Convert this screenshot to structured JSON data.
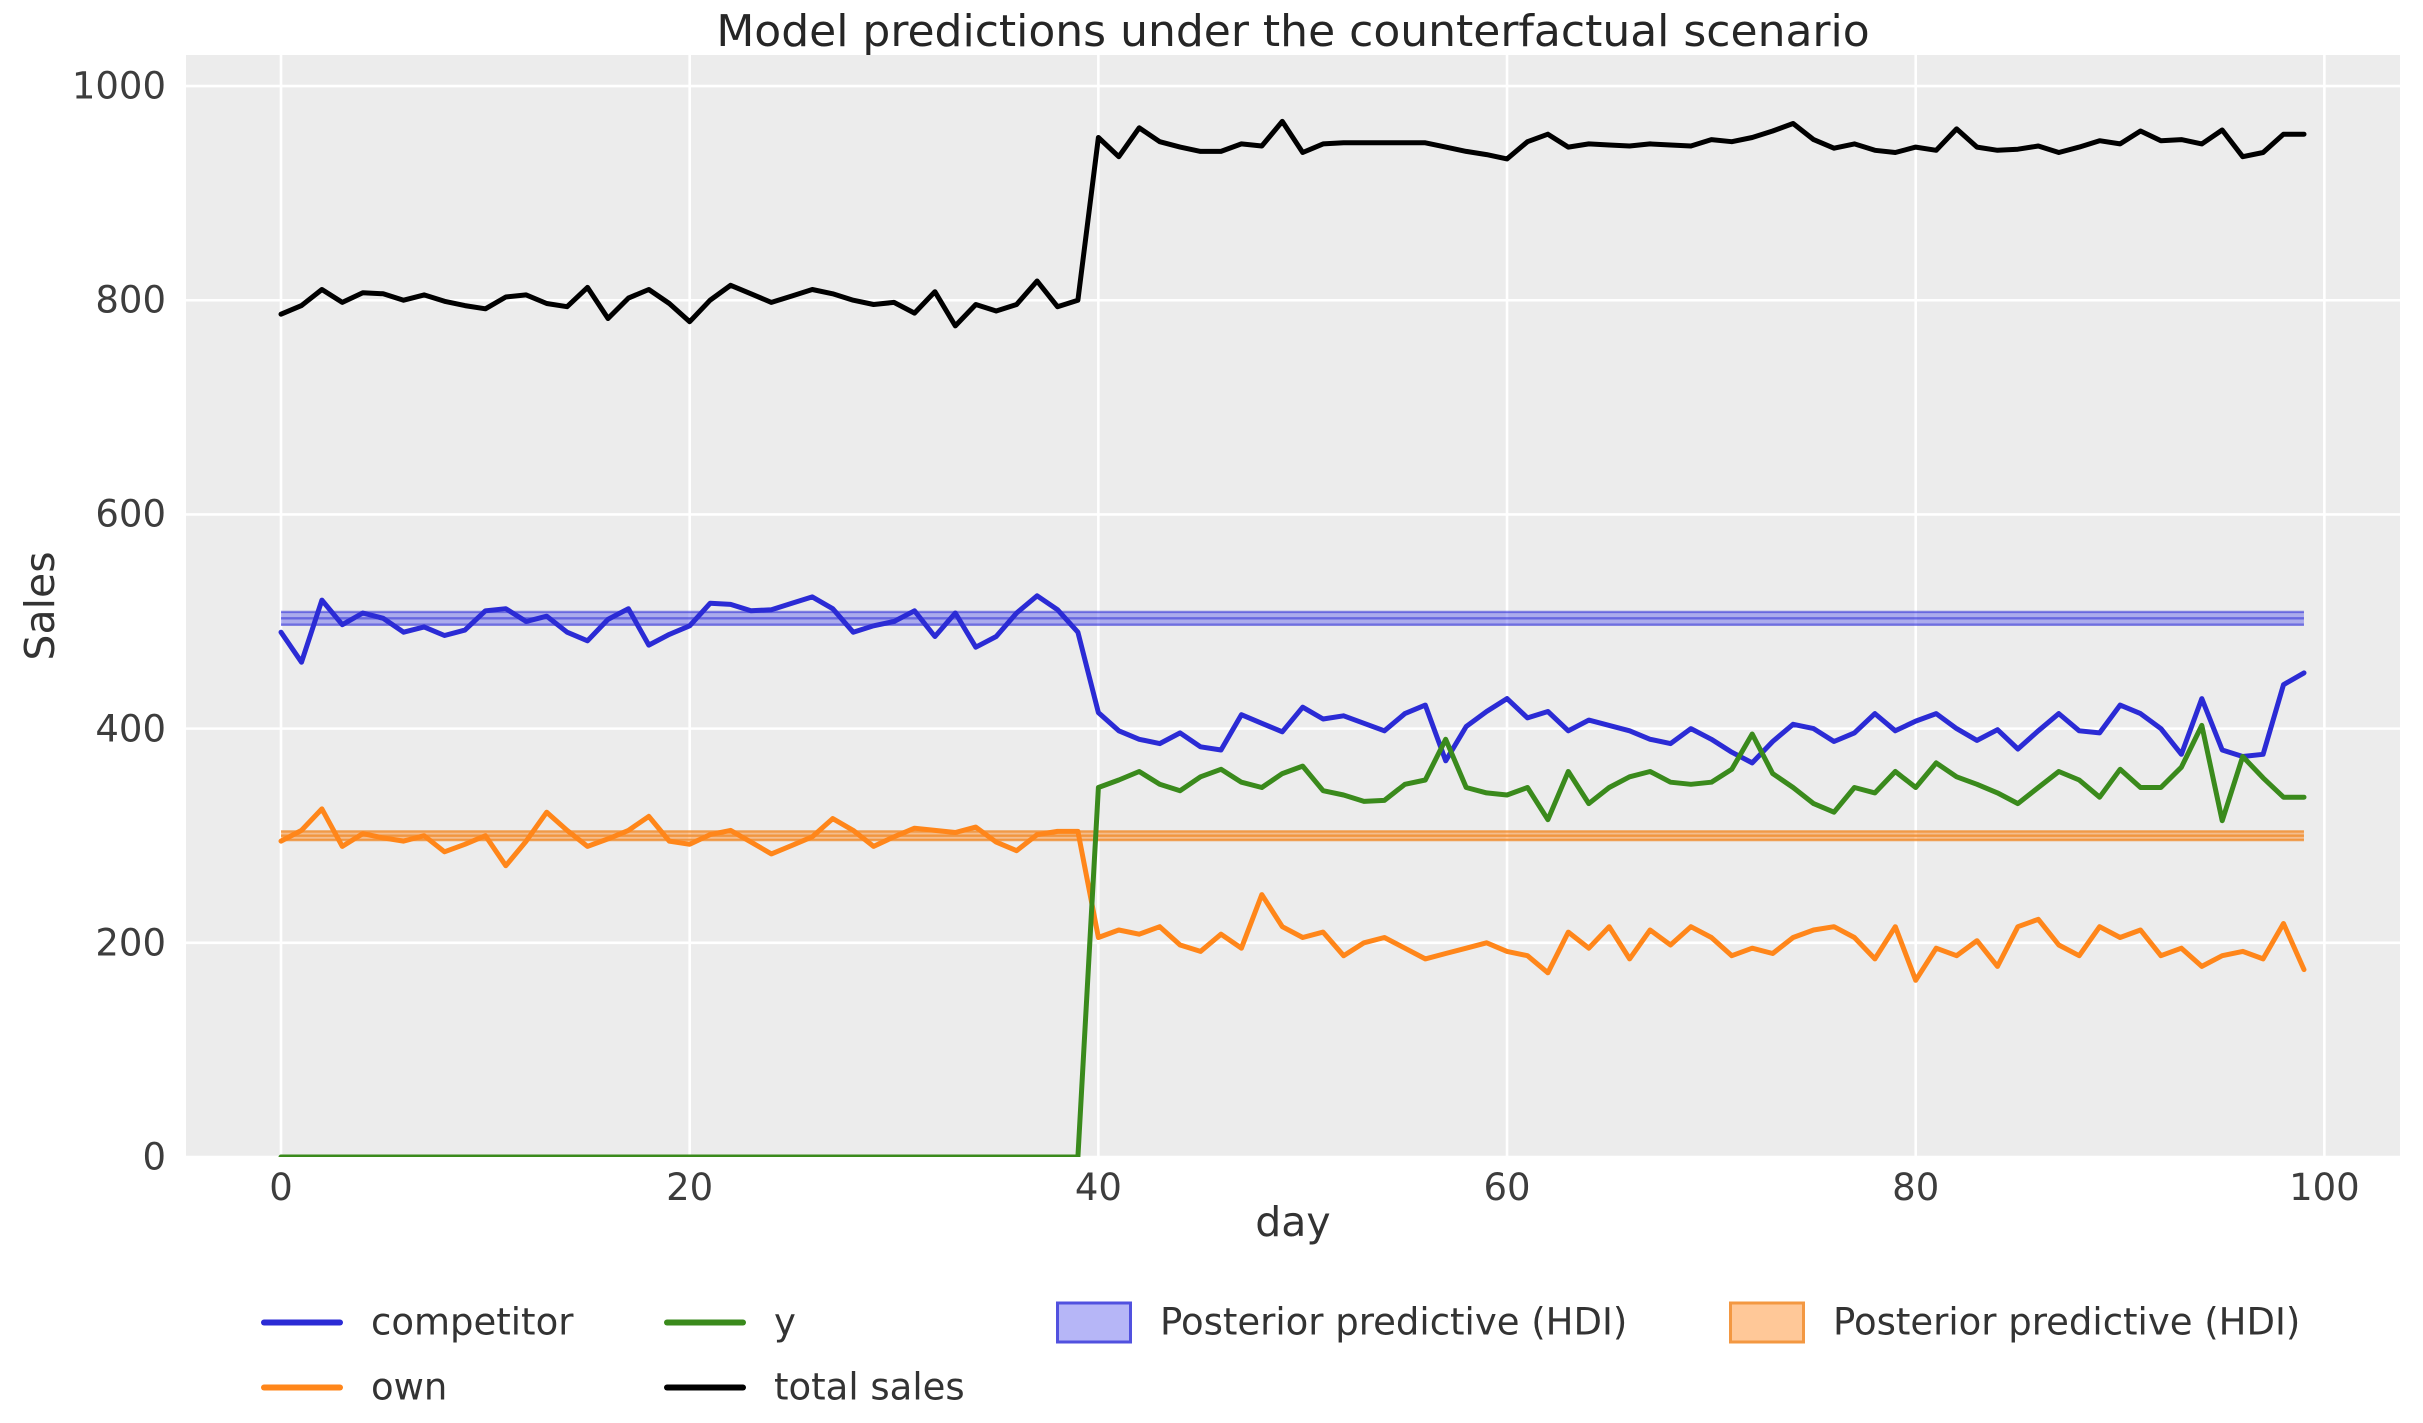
{
  "title": "Model predictions under the counterfactual scenario",
  "chart_data": {
    "type": "line",
    "title": "Model predictions under the counterfactual scenario",
    "xlabel": "day",
    "ylabel": "Sales",
    "xlim": [
      -4.65,
      103.7
    ],
    "ylim": [
      0,
      1029
    ],
    "xticks": [
      0,
      20,
      40,
      60,
      80,
      100
    ],
    "yticks": [
      0,
      200,
      400,
      600,
      800,
      1000
    ],
    "grid": true,
    "plot_background": "#ececec",
    "gridline_color": "#ffffff",
    "legend_position": "below-axis, two rows, no frame",
    "series": [
      {
        "name": "competitor",
        "color": "#2b2bd5",
        "values": [
          490,
          462,
          520,
          497,
          508,
          503,
          490,
          495,
          487,
          492,
          510,
          512,
          500,
          505,
          490,
          482,
          502,
          512,
          478,
          488,
          496,
          517,
          516,
          510,
          511,
          517,
          523,
          512,
          490,
          496,
          500,
          510,
          486,
          508,
          476,
          486,
          508,
          524,
          511,
          490,
          415,
          398,
          390,
          386,
          396,
          383,
          380,
          413,
          405,
          397,
          420,
          409,
          412,
          405,
          398,
          414,
          422,
          370,
          402,
          416,
          428,
          410,
          416,
          398,
          408,
          403,
          398,
          390,
          386,
          400,
          390,
          378,
          368,
          388,
          404,
          400,
          388,
          396,
          414,
          398,
          407,
          414,
          400,
          389,
          399,
          381,
          398,
          414,
          398,
          396,
          422,
          414,
          400,
          376,
          428,
          380,
          374,
          376,
          441,
          452
        ]
      },
      {
        "name": "own",
        "color": "#ff861a",
        "values": [
          295,
          305,
          325,
          290,
          302,
          298,
          295,
          300,
          285,
          292,
          300,
          272,
          295,
          322,
          305,
          290,
          297,
          305,
          318,
          295,
          292,
          301,
          305,
          294,
          283,
          291,
          299,
          316,
          305,
          290,
          299,
          307,
          305,
          303,
          308,
          294,
          286,
          301,
          304,
          304,
          205,
          212,
          208,
          215,
          198,
          192,
          208,
          195,
          245,
          215,
          205,
          210,
          188,
          200,
          205,
          195,
          185,
          190,
          195,
          200,
          192,
          188,
          172,
          210,
          195,
          215,
          185,
          212,
          198,
          215,
          205,
          188,
          195,
          190,
          205,
          212,
          215,
          205,
          185,
          215,
          165,
          195,
          188,
          202,
          178,
          215,
          222,
          198,
          188,
          215,
          205,
          212,
          188,
          195,
          178,
          188,
          192,
          185,
          218,
          175
        ]
      },
      {
        "name": "y",
        "color": "#3a8a1c",
        "values": [
          0,
          0,
          0,
          0,
          0,
          0,
          0,
          0,
          0,
          0,
          0,
          0,
          0,
          0,
          0,
          0,
          0,
          0,
          0,
          0,
          0,
          0,
          0,
          0,
          0,
          0,
          0,
          0,
          0,
          0,
          0,
          0,
          0,
          0,
          0,
          0,
          0,
          0,
          0,
          0,
          345,
          352,
          360,
          348,
          342,
          355,
          362,
          350,
          345,
          358,
          365,
          342,
          338,
          332,
          333,
          348,
          352,
          390,
          345,
          340,
          338,
          345,
          315,
          360,
          330,
          345,
          355,
          360,
          350,
          348,
          350,
          362,
          395,
          358,
          345,
          330,
          322,
          345,
          340,
          360,
          345,
          368,
          355,
          348,
          340,
          330,
          345,
          360,
          352,
          336,
          362,
          345,
          345,
          364,
          403,
          314,
          374,
          354,
          336,
          336
        ]
      },
      {
        "name": "total sales",
        "color": "#000000",
        "values": [
          787,
          795,
          810,
          798,
          807,
          806,
          800,
          805,
          799,
          795,
          792,
          803,
          805,
          797,
          794,
          812,
          783,
          802,
          810,
          797,
          780,
          800,
          814,
          806,
          798,
          804,
          810,
          806,
          800,
          796,
          798,
          788,
          808,
          776,
          796,
          790,
          796,
          818,
          794,
          800,
          952,
          934,
          961,
          948,
          943,
          939,
          939,
          946,
          944,
          967,
          938,
          946,
          947,
          947,
          947,
          947,
          947,
          943,
          939,
          936,
          932,
          948,
          955,
          943,
          946,
          945,
          944,
          946,
          945,
          944,
          950,
          948,
          952,
          958,
          965,
          950,
          942,
          946,
          940,
          938,
          943,
          940,
          960,
          943,
          940,
          941,
          944,
          938,
          943,
          949,
          946,
          958,
          949,
          950,
          946,
          959,
          934,
          938,
          955,
          955
        ]
      }
    ],
    "bands": [
      {
        "name": "Posterior predictive (HDI)",
        "series": "competitor",
        "lo": 497,
        "hi": 509,
        "mid": 503,
        "x_start": 0,
        "x_end": 99,
        "fill": "rgba(80,80,235,0.42)",
        "edge": "rgba(47,47,215,0.55)"
      },
      {
        "name": "Posterior predictive (HDI)",
        "series": "own",
        "lo": 296,
        "hi": 304,
        "mid": 300,
        "x_start": 0,
        "x_end": 99,
        "fill": "rgba(255,133,26,0.45)",
        "edge": "rgba(240,140,45,0.8)"
      }
    ],
    "legend": {
      "entries": [
        {
          "label": "competitor",
          "swatch": "line",
          "color": "#2b2bd5"
        },
        {
          "label": "own",
          "swatch": "line",
          "color": "#ff861a"
        },
        {
          "label": "y",
          "swatch": "line",
          "color": "#3a8a1c"
        },
        {
          "label": "total sales",
          "swatch": "line",
          "color": "#000000"
        },
        {
          "label": "Posterior predictive (HDI)",
          "swatch": "patch",
          "fill": "rgba(80,80,235,0.42)",
          "edge": "rgba(47,47,215,0.55)"
        },
        {
          "label": "Posterior predictive (HDI)",
          "swatch": "patch",
          "fill": "rgba(255,133,26,0.45)",
          "edge": "rgba(240,140,45,0.8)"
        }
      ]
    }
  }
}
